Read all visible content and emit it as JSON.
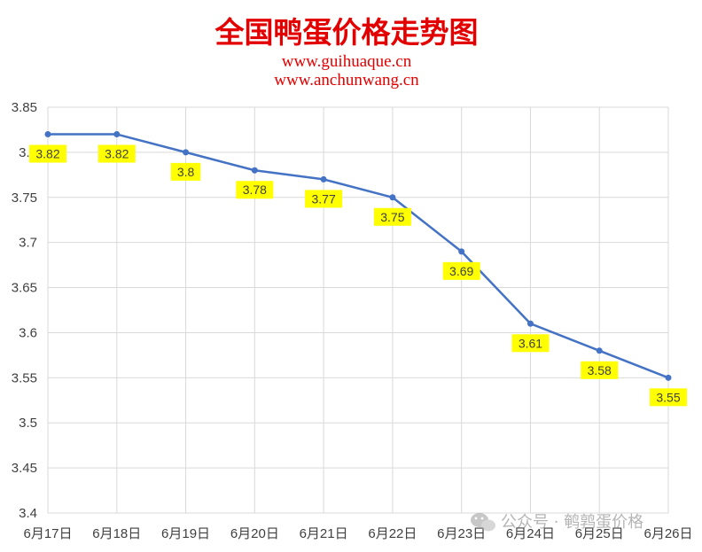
{
  "header": {
    "title": "全国鸭蛋价格走势图",
    "site1": "www.guihuaque.cn",
    "site2": "www.anchunwang.cn"
  },
  "watermark": {
    "text": "公众号 · 鹌鹑蛋价格",
    "icon": "wechat-icon"
  },
  "colors": {
    "title": "#e30000",
    "site": "#e30000",
    "line": "#4472c4",
    "label_bg": "#ffff00",
    "grid": "#d9d9d9"
  },
  "chart_data": {
    "type": "line",
    "title": "全国鸭蛋价格走势图",
    "categories": [
      "6月17日",
      "6月18日",
      "6月19日",
      "6月20日",
      "6月21日",
      "6月22日",
      "6月23日",
      "6月24日",
      "6月25日",
      "6月26日"
    ],
    "values": [
      3.82,
      3.82,
      3.8,
      3.78,
      3.77,
      3.75,
      3.69,
      3.61,
      3.58,
      3.55
    ],
    "value_labels": [
      "3.82",
      "3.82",
      "3.8",
      "3.78",
      "3.77",
      "3.75",
      "3.69",
      "3.61",
      "3.58",
      "3.55"
    ],
    "yticks": [
      "3.4",
      "3.45",
      "3.5",
      "3.55",
      "3.6",
      "3.65",
      "3.7",
      "3.75",
      "3.8",
      "3.85"
    ],
    "ylim": [
      3.4,
      3.85
    ],
    "grid": true,
    "legend": "none"
  }
}
